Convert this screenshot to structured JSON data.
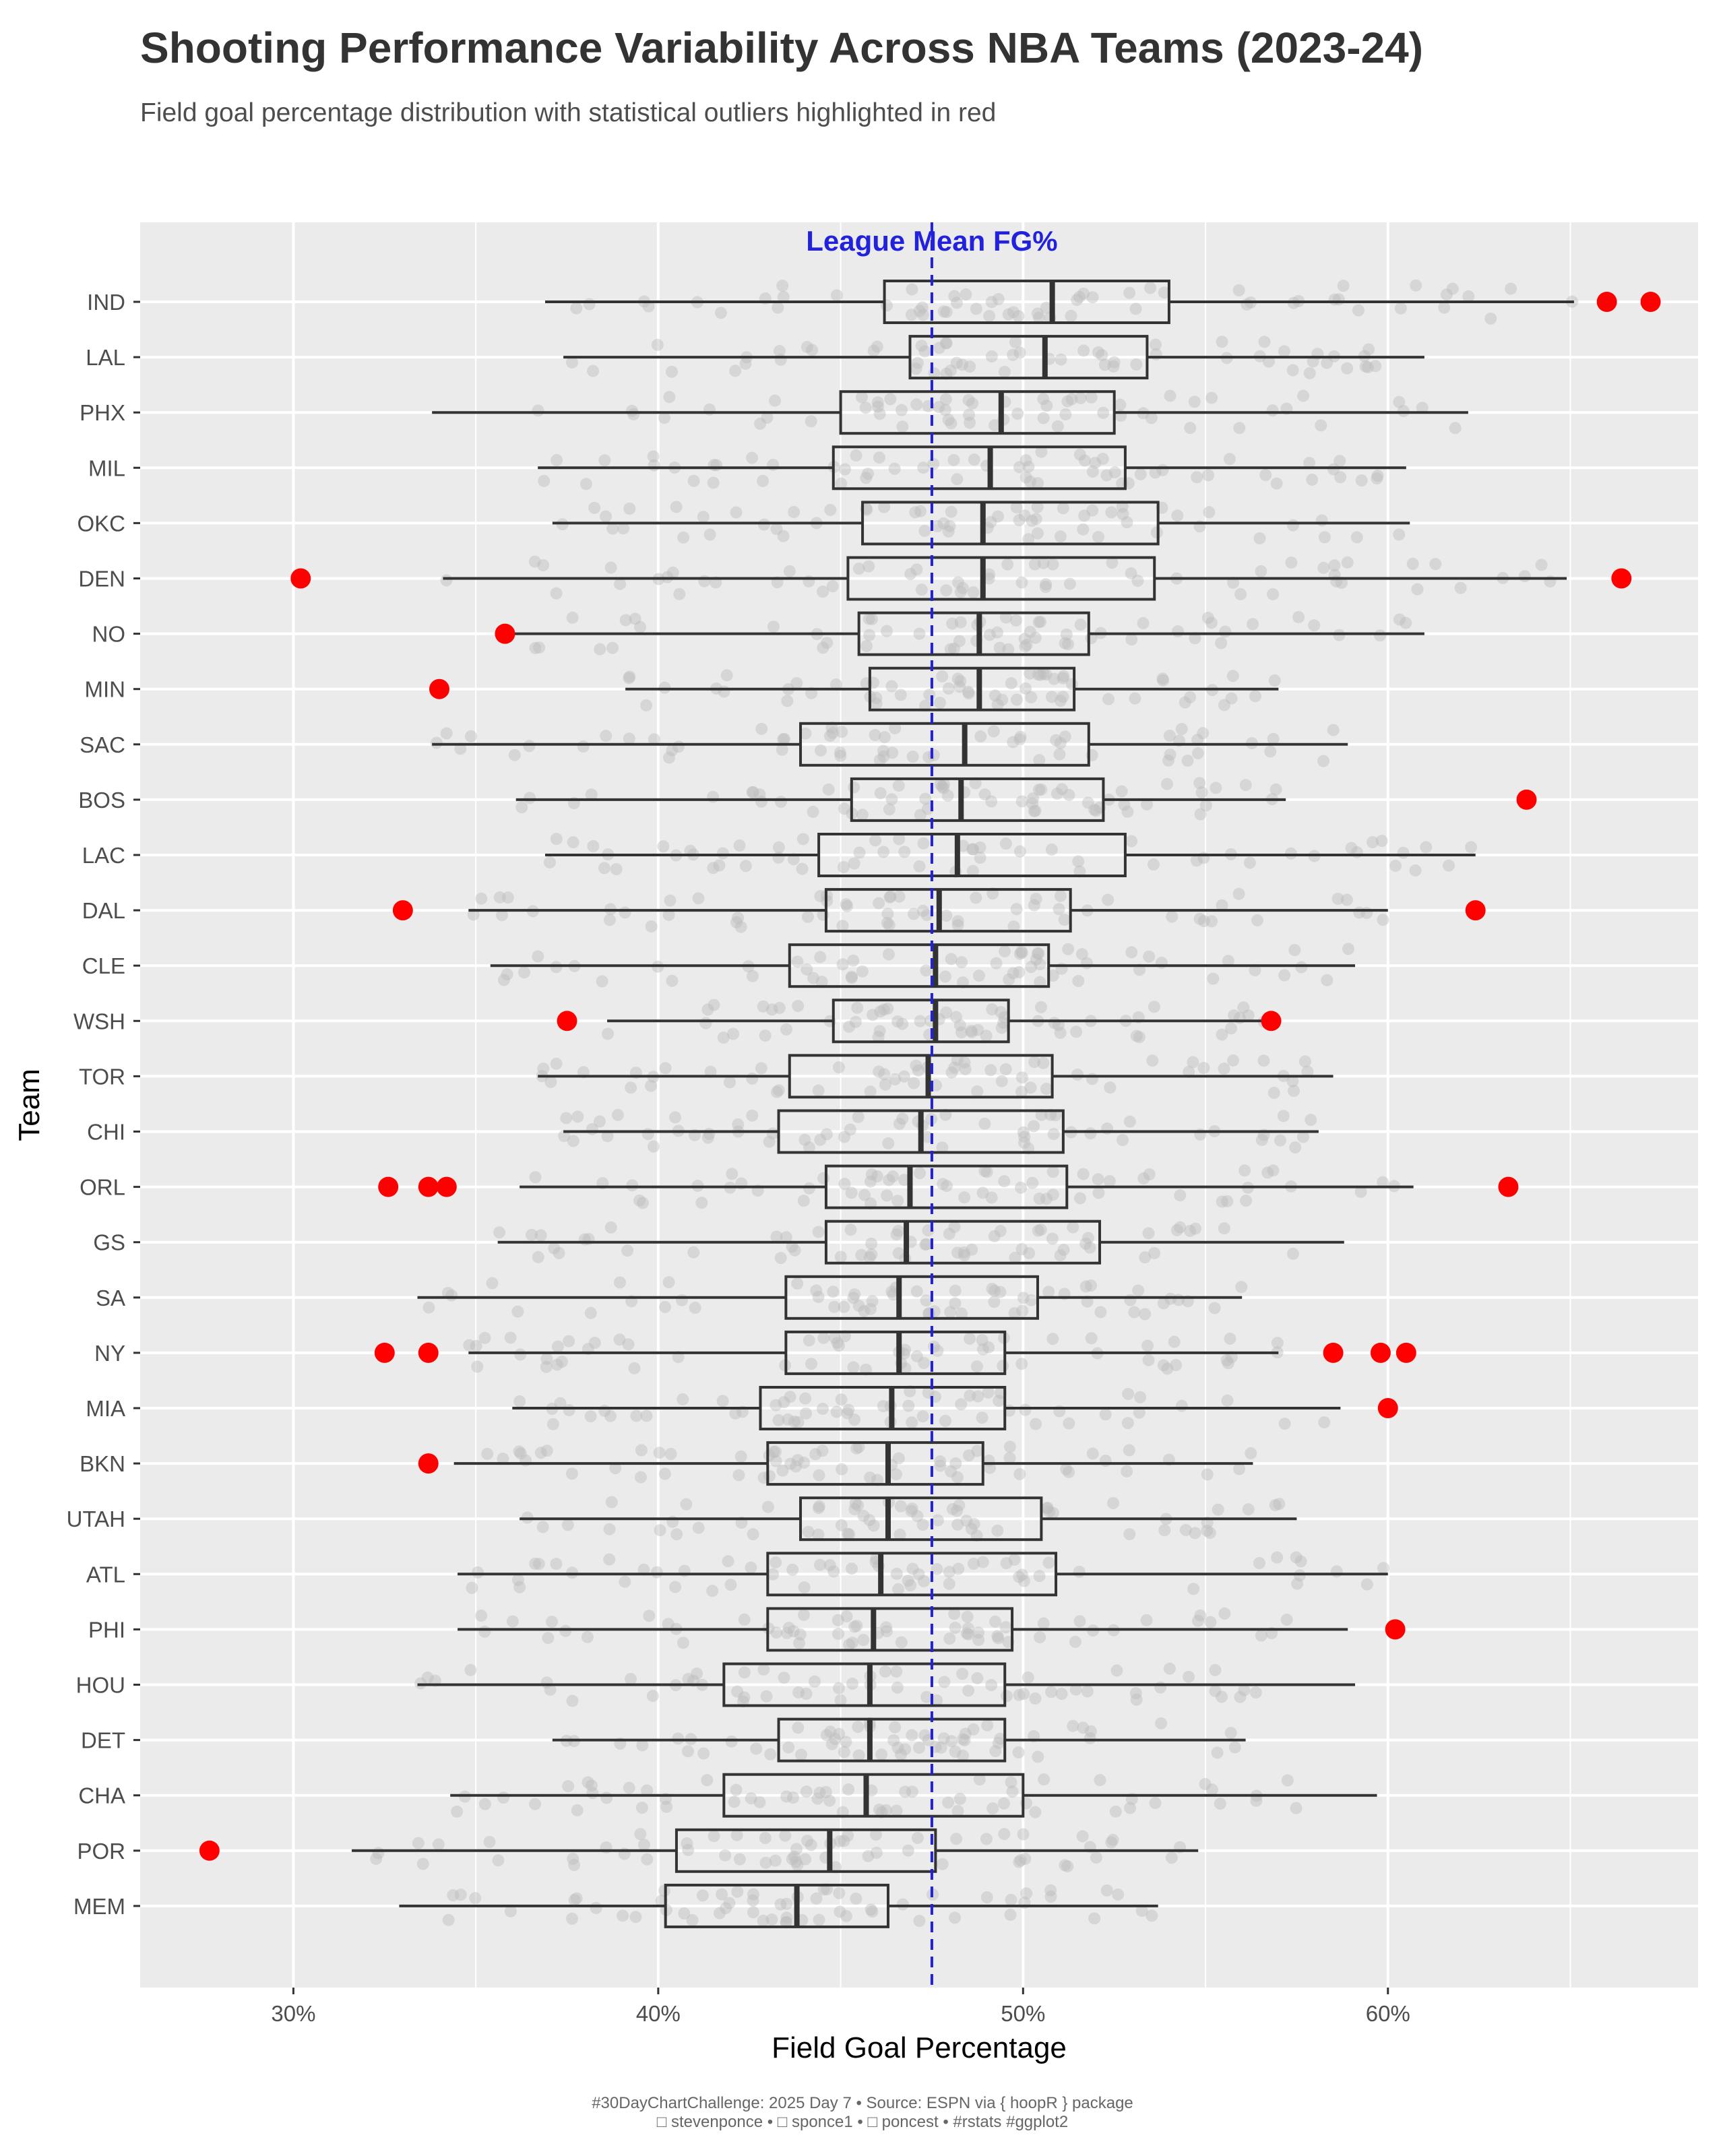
{
  "title": "Shooting Performance Variability Across NBA Teams (2023-24)",
  "subtitle": "Field goal percentage distribution with statistical outliers highlighted in red",
  "caption_line1": "#30DayChartChallenge: 2025 Day 7 • Source: ESPN via { hoopR } package",
  "caption_line2": "□ stevenponce • □ sponce1 • □ poncest • #rstats #ggplot2",
  "colors": {
    "panel": "#ebebeb",
    "outlier": "#ff0000",
    "mean_line": "#2222dd",
    "box": "#333333",
    "jitter": "#bdbdbd"
  },
  "chart_data": {
    "type": "boxplot",
    "xlabel": "Field Goal Percentage",
    "ylabel": "Team",
    "xlim": [
      25.8,
      68.5
    ],
    "x_ticks": [
      30,
      40,
      50,
      60
    ],
    "x_tick_labels": [
      "30%",
      "40%",
      "50%",
      "60%"
    ],
    "grid": true,
    "mean_line": {
      "value": 47.5,
      "label": "League Mean FG%"
    },
    "teams": [
      {
        "team": "IND",
        "whisker_low": 36.9,
        "q1": 46.2,
        "median": 50.8,
        "q3": 54.0,
        "whisker_high": 65.1,
        "outliers": [
          66.0,
          67.2
        ]
      },
      {
        "team": "LAL",
        "whisker_low": 37.4,
        "q1": 46.9,
        "median": 50.6,
        "q3": 53.4,
        "whisker_high": 61.0,
        "outliers": []
      },
      {
        "team": "PHX",
        "whisker_low": 33.8,
        "q1": 45.0,
        "median": 49.4,
        "q3": 52.5,
        "whisker_high": 62.2,
        "outliers": []
      },
      {
        "team": "MIL",
        "whisker_low": 36.7,
        "q1": 44.8,
        "median": 49.1,
        "q3": 52.8,
        "whisker_high": 60.5,
        "outliers": []
      },
      {
        "team": "OKC",
        "whisker_low": 37.1,
        "q1": 45.6,
        "median": 48.9,
        "q3": 53.7,
        "whisker_high": 60.6,
        "outliers": []
      },
      {
        "team": "DEN",
        "whisker_low": 34.1,
        "q1": 45.2,
        "median": 48.9,
        "q3": 53.6,
        "whisker_high": 64.9,
        "outliers": [
          30.2,
          66.4
        ]
      },
      {
        "team": "NO",
        "whisker_low": 36.0,
        "q1": 45.5,
        "median": 48.8,
        "q3": 51.8,
        "whisker_high": 61.0,
        "outliers": [
          35.8
        ]
      },
      {
        "team": "MIN",
        "whisker_low": 39.1,
        "q1": 45.8,
        "median": 48.8,
        "q3": 51.4,
        "whisker_high": 57.0,
        "outliers": [
          34.0
        ]
      },
      {
        "team": "SAC",
        "whisker_low": 33.8,
        "q1": 43.9,
        "median": 48.4,
        "q3": 51.8,
        "whisker_high": 58.9,
        "outliers": []
      },
      {
        "team": "BOS",
        "whisker_low": 36.1,
        "q1": 45.3,
        "median": 48.3,
        "q3": 52.2,
        "whisker_high": 57.2,
        "outliers": [
          63.8
        ]
      },
      {
        "team": "LAC",
        "whisker_low": 36.9,
        "q1": 44.4,
        "median": 48.2,
        "q3": 52.8,
        "whisker_high": 62.4,
        "outliers": []
      },
      {
        "team": "DAL",
        "whisker_low": 34.8,
        "q1": 44.6,
        "median": 47.7,
        "q3": 51.3,
        "whisker_high": 60.0,
        "outliers": [
          33.0,
          62.4
        ]
      },
      {
        "team": "CLE",
        "whisker_low": 35.4,
        "q1": 43.6,
        "median": 47.6,
        "q3": 50.7,
        "whisker_high": 59.1,
        "outliers": []
      },
      {
        "team": "WSH",
        "whisker_low": 38.6,
        "q1": 44.8,
        "median": 47.6,
        "q3": 49.6,
        "whisker_high": 56.8,
        "outliers": [
          37.5,
          56.8
        ]
      },
      {
        "team": "TOR",
        "whisker_low": 36.7,
        "q1": 43.6,
        "median": 47.4,
        "q3": 50.8,
        "whisker_high": 58.5,
        "outliers": []
      },
      {
        "team": "CHI",
        "whisker_low": 37.4,
        "q1": 43.3,
        "median": 47.2,
        "q3": 51.1,
        "whisker_high": 58.1,
        "outliers": []
      },
      {
        "team": "ORL",
        "whisker_low": 36.2,
        "q1": 44.6,
        "median": 46.9,
        "q3": 51.2,
        "whisker_high": 60.7,
        "outliers": [
          32.6,
          33.7,
          34.2,
          63.3
        ]
      },
      {
        "team": "GS",
        "whisker_low": 35.6,
        "q1": 44.6,
        "median": 46.8,
        "q3": 52.1,
        "whisker_high": 58.8,
        "outliers": []
      },
      {
        "team": "SA",
        "whisker_low": 33.4,
        "q1": 43.5,
        "median": 46.6,
        "q3": 50.4,
        "whisker_high": 56.0,
        "outliers": []
      },
      {
        "team": "NY",
        "whisker_low": 34.8,
        "q1": 43.5,
        "median": 46.6,
        "q3": 49.5,
        "whisker_high": 57.0,
        "outliers": [
          32.5,
          33.7,
          58.5,
          59.8,
          60.5
        ]
      },
      {
        "team": "MIA",
        "whisker_low": 36.0,
        "q1": 42.8,
        "median": 46.4,
        "q3": 49.5,
        "whisker_high": 58.7,
        "outliers": [
          60.0
        ]
      },
      {
        "team": "BKN",
        "whisker_low": 34.4,
        "q1": 43.0,
        "median": 46.3,
        "q3": 48.9,
        "whisker_high": 56.3,
        "outliers": [
          33.7
        ]
      },
      {
        "team": "UTAH",
        "whisker_low": 36.2,
        "q1": 43.9,
        "median": 46.3,
        "q3": 50.5,
        "whisker_high": 57.5,
        "outliers": []
      },
      {
        "team": "ATL",
        "whisker_low": 34.5,
        "q1": 43.0,
        "median": 46.1,
        "q3": 50.9,
        "whisker_high": 60.0,
        "outliers": []
      },
      {
        "team": "PHI",
        "whisker_low": 34.5,
        "q1": 43.0,
        "median": 45.9,
        "q3": 49.7,
        "whisker_high": 58.9,
        "outliers": [
          60.2
        ]
      },
      {
        "team": "HOU",
        "whisker_low": 33.4,
        "q1": 41.8,
        "median": 45.8,
        "q3": 49.5,
        "whisker_high": 59.1,
        "outliers": []
      },
      {
        "team": "DET",
        "whisker_low": 37.1,
        "q1": 43.3,
        "median": 45.8,
        "q3": 49.5,
        "whisker_high": 56.1,
        "outliers": []
      },
      {
        "team": "CHA",
        "whisker_low": 34.3,
        "q1": 41.8,
        "median": 45.7,
        "q3": 50.0,
        "whisker_high": 59.7,
        "outliers": []
      },
      {
        "team": "POR",
        "whisker_low": 31.6,
        "q1": 40.5,
        "median": 44.7,
        "q3": 47.6,
        "whisker_high": 54.8,
        "outliers": [
          27.7
        ]
      },
      {
        "team": "MEM",
        "whisker_low": 32.9,
        "q1": 40.2,
        "median": 43.8,
        "q3": 46.3,
        "whisker_high": 53.7,
        "outliers": []
      }
    ]
  }
}
